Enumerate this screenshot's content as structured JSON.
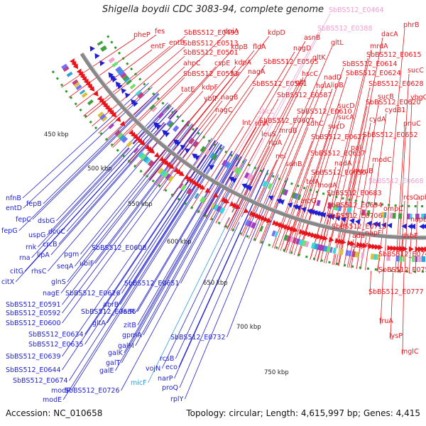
{
  "title": "Shigella boydii CDC 3083-94, complete genome",
  "accession_text": "Accession: NC_010658",
  "topology_text": "Topology: circular; Length: 4,615,997 bp; Genes: 4,415",
  "colors": {
    "forward": "#e8141b",
    "reverse": "#1e1ed2",
    "pseudo": "#f0a0d0",
    "rna": "#33a0d8",
    "backbone": "#888888",
    "tick": "#2e9a2e"
  },
  "kbp_labels": [
    "450 kbp",
    "500 kbp",
    "550 kbp",
    "600 kbp",
    "650 kbp",
    "700 kbp",
    "750 kbp"
  ],
  "forward_labels": [
    "SbBS512_E0464",
    "SbBS512_E0388",
    "phrB",
    "pheP",
    "fes",
    "SbBS512_E0493",
    "dpiA",
    "kdpD",
    "asnB",
    "dacA",
    "entF",
    "entB",
    "SbBS512_E0513",
    "kdpB",
    "fldA",
    "nagD",
    "gltL",
    "mrdA",
    "SbBS512_E0501",
    "gltK",
    "SbBS512_E0615",
    "ahpC",
    "cspE",
    "kdpA",
    "SbBS512_E0565",
    "SbBS512_E0614",
    "sucC",
    "SbBS512_E0533",
    "fur",
    "nagA",
    "hscC",
    "nadD",
    "SbBS512_E0624",
    "tatE",
    "kdpF",
    "SbBS512_E0561",
    "gltJ",
    "holA",
    "lipB",
    "SbBS512_E0628",
    "ybfF",
    "nagB",
    "SbBS512_E0587",
    "sucB",
    "ybgC",
    "nagC",
    "sbcC",
    "SbBS512_E0610",
    "SbBS512_E0620",
    "sucD",
    "lnt",
    "rihA",
    "sucA",
    "cydB1",
    "SbBS512_E0607",
    "sdhC",
    "pnuC",
    "leuS",
    "mrdB",
    "sucD",
    "cydA",
    "rlpA",
    "SbBS512_E0627",
    "SbBS512_E0652",
    "nei",
    "pal",
    "SbBS512_E0637",
    "sdhB",
    "nadA",
    "modC",
    "SbBS512_E0650",
    "modB",
    "tolA",
    "SbBS512_E0668",
    "modA",
    "SbBS512_E0683",
    "aroG",
    "rcsC",
    "apbE",
    "SbBS512_E0694",
    "ompC",
    "SbBS512_E0706",
    "napB",
    "SbBS512_E0719",
    "dsbE",
    "ada",
    "napF",
    "napA",
    "SbBS512_E0747",
    "SbBS512_E0753",
    "SbBS512_E0777",
    "fruA",
    "lysP",
    "mglC"
  ],
  "reverse_labels": [
    "nfnB",
    "entD",
    "fepB",
    "fepC",
    "dsbG",
    "fepG",
    "uspG",
    "dcuC",
    "rnk",
    "crcB",
    "rna",
    "lipA",
    "pgm",
    "SbBS512_E0608",
    "rhsC",
    "seqA",
    "ubiF",
    "citG",
    "glnS",
    "citX",
    "nagE",
    "SbBS512_E0626",
    "SbBS512_E0651",
    "SbBS512_E0591",
    "abrB",
    "SbBS512_E0592",
    "SbBS512_E0636",
    "farR",
    "SbBS512_E0600",
    "gltA",
    "zitB",
    "SbBS512_E0634",
    "gpmA",
    "SbBS512_E0635",
    "galM",
    "SbBS512_E0732",
    "SbBS512_E0639",
    "galK",
    "galT",
    "rcsB",
    "SbBS512_E0644",
    "galE",
    "vojN",
    "eco",
    "SbBS512_E0674",
    "micF",
    "narP",
    "modF",
    "SbBS512_E0726",
    "proQ",
    "modE",
    "rplY"
  ]
}
